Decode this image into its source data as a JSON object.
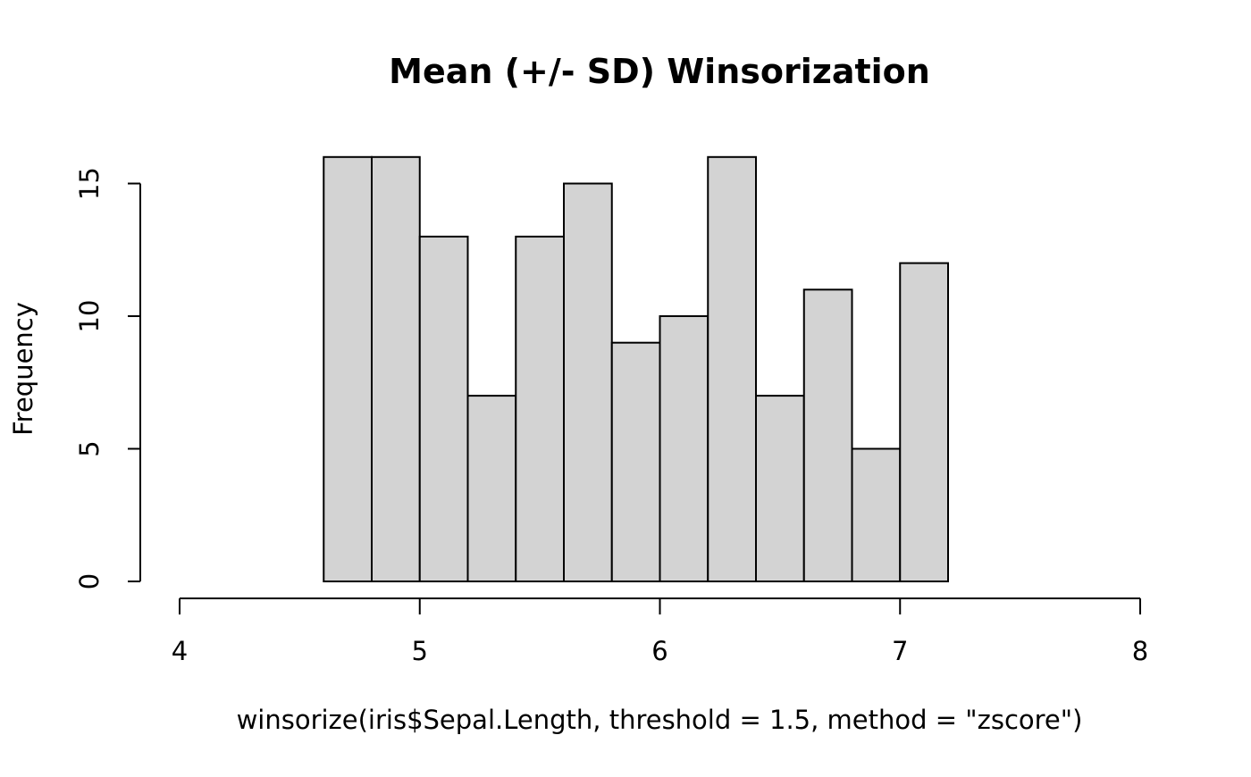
{
  "chart_data": {
    "type": "bar",
    "title": "Mean (+/- SD) Winsorization",
    "xlabel": "winsorize(iris$Sepal.Length, threshold = 1.5, method = \"zscore\")",
    "ylabel": "Frequency",
    "xlim": [
      4,
      8
    ],
    "ylim": [
      0,
      16
    ],
    "xticks": [
      4,
      5,
      6,
      7,
      8
    ],
    "yticks": [
      0,
      5,
      10,
      15
    ],
    "bins": [
      {
        "x0": 4.6,
        "x1": 4.8,
        "count": 16
      },
      {
        "x0": 4.8,
        "x1": 5.0,
        "count": 16
      },
      {
        "x0": 5.0,
        "x1": 5.2,
        "count": 13
      },
      {
        "x0": 5.2,
        "x1": 5.4,
        "count": 7
      },
      {
        "x0": 5.4,
        "x1": 5.6,
        "count": 13
      },
      {
        "x0": 5.6,
        "x1": 5.8,
        "count": 15
      },
      {
        "x0": 5.8,
        "x1": 6.0,
        "count": 9
      },
      {
        "x0": 6.0,
        "x1": 6.2,
        "count": 10
      },
      {
        "x0": 6.2,
        "x1": 6.4,
        "count": 16
      },
      {
        "x0": 6.4,
        "x1": 6.6,
        "count": 7
      },
      {
        "x0": 6.6,
        "x1": 6.8,
        "count": 11
      },
      {
        "x0": 6.8,
        "x1": 7.0,
        "count": 5
      },
      {
        "x0": 7.0,
        "x1": 7.2,
        "count": 12
      }
    ],
    "bar_color": "#d3d3d3",
    "grid": false,
    "legend": "none"
  }
}
